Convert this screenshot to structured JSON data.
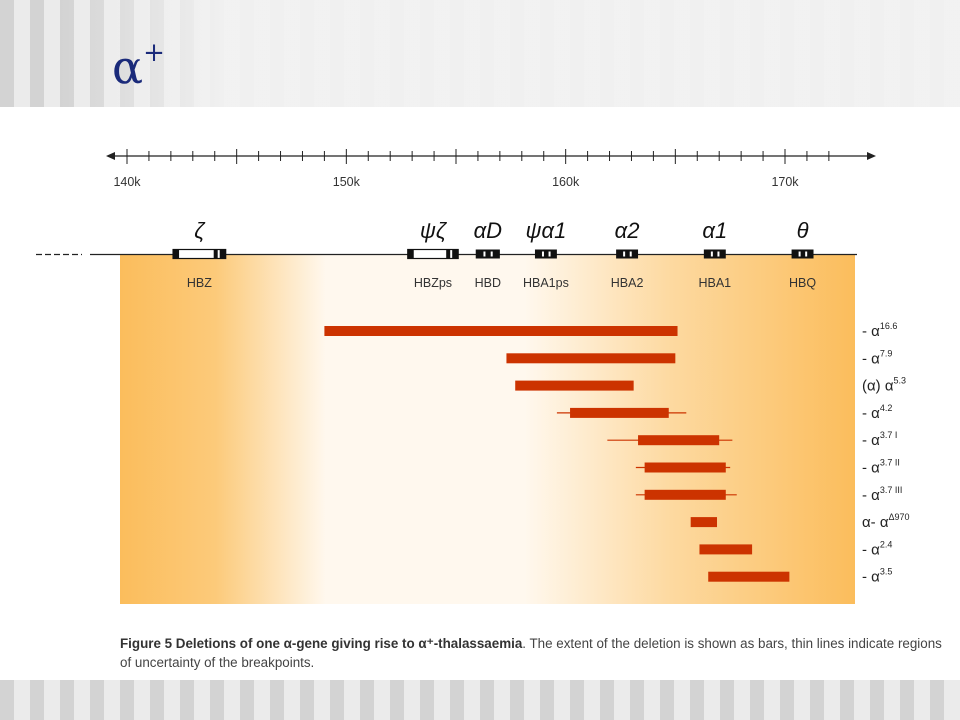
{
  "slide": {
    "title_symbol": "α",
    "title_superscript": "+"
  },
  "figure": {
    "axis_ticks": [
      {
        "pos": 140,
        "label": "140k"
      },
      {
        "pos": 150,
        "label": "150k"
      },
      {
        "pos": 160,
        "label": "160k"
      },
      {
        "pos": 170,
        "label": "170k"
      }
    ],
    "genes": [
      {
        "name": "HBZ",
        "symbol": "ζ",
        "start": 142.1,
        "end": 144.5
      },
      {
        "name": "HBZps",
        "symbol": "ψζ",
        "start": 152.8,
        "end": 155.1
      },
      {
        "name": "HBD",
        "symbol": "αD",
        "start": 155.9,
        "end": 157.0
      },
      {
        "name": "HBA1ps",
        "symbol": "ψα1",
        "start": 158.6,
        "end": 159.6
      },
      {
        "name": "HBA2",
        "symbol": "α2",
        "start": 162.3,
        "end": 163.3
      },
      {
        "name": "HBA1",
        "symbol": "α1",
        "start": 166.3,
        "end": 167.3
      },
      {
        "name": "HBQ",
        "symbol": "θ",
        "start": 170.3,
        "end": 171.3
      }
    ],
    "deletions": [
      {
        "label": "- α",
        "sup": "16.6",
        "start": 149.0,
        "end": 165.1,
        "unc_start": null,
        "unc_end": null
      },
      {
        "label": "- α",
        "sup": "7.9",
        "start": 157.3,
        "end": 165.0,
        "unc_start": null,
        "unc_end": null
      },
      {
        "label": "(α) α",
        "sup": "5.3",
        "start": 157.7,
        "end": 163.1,
        "unc_start": null,
        "unc_end": null
      },
      {
        "label": "- α",
        "sup": "4.2",
        "start": 160.2,
        "end": 164.7,
        "unc_start": 159.6,
        "unc_end": 165.5
      },
      {
        "label": "- α",
        "sup": "3.7 I",
        "start": 163.3,
        "end": 167.0,
        "unc_start": 161.9,
        "unc_end": 167.6
      },
      {
        "label": "- α",
        "sup": "3.7 II",
        "start": 163.6,
        "end": 167.3,
        "unc_start": 163.2,
        "unc_end": 167.5
      },
      {
        "label": "- α",
        "sup": "3.7 III",
        "start": 163.6,
        "end": 167.3,
        "unc_start": 163.2,
        "unc_end": 167.8
      },
      {
        "label": "α- α",
        "sup": "Δ970",
        "start": 165.7,
        "end": 166.9,
        "unc_start": null,
        "unc_end": null
      },
      {
        "label": "- α",
        "sup": "2.4",
        "start": 166.1,
        "end": 168.5,
        "unc_start": null,
        "unc_end": null
      },
      {
        "label": "- α",
        "sup": "3.5",
        "start": 166.5,
        "end": 170.2,
        "unc_start": null,
        "unc_end": null
      }
    ]
  },
  "caption": {
    "bold": "Figure 5 Deletions of one α-gene giving rise to α⁺-thalassaemia",
    "text": ". The extent of the deletion is shown as bars, thin lines indicate regions of uncertainty of the breakpoints."
  },
  "colors": {
    "title": "#1a2a7a",
    "bar": "#cc3300",
    "gradient_edge": "#fbbd5c",
    "gradient_light": "#fff8ee"
  }
}
